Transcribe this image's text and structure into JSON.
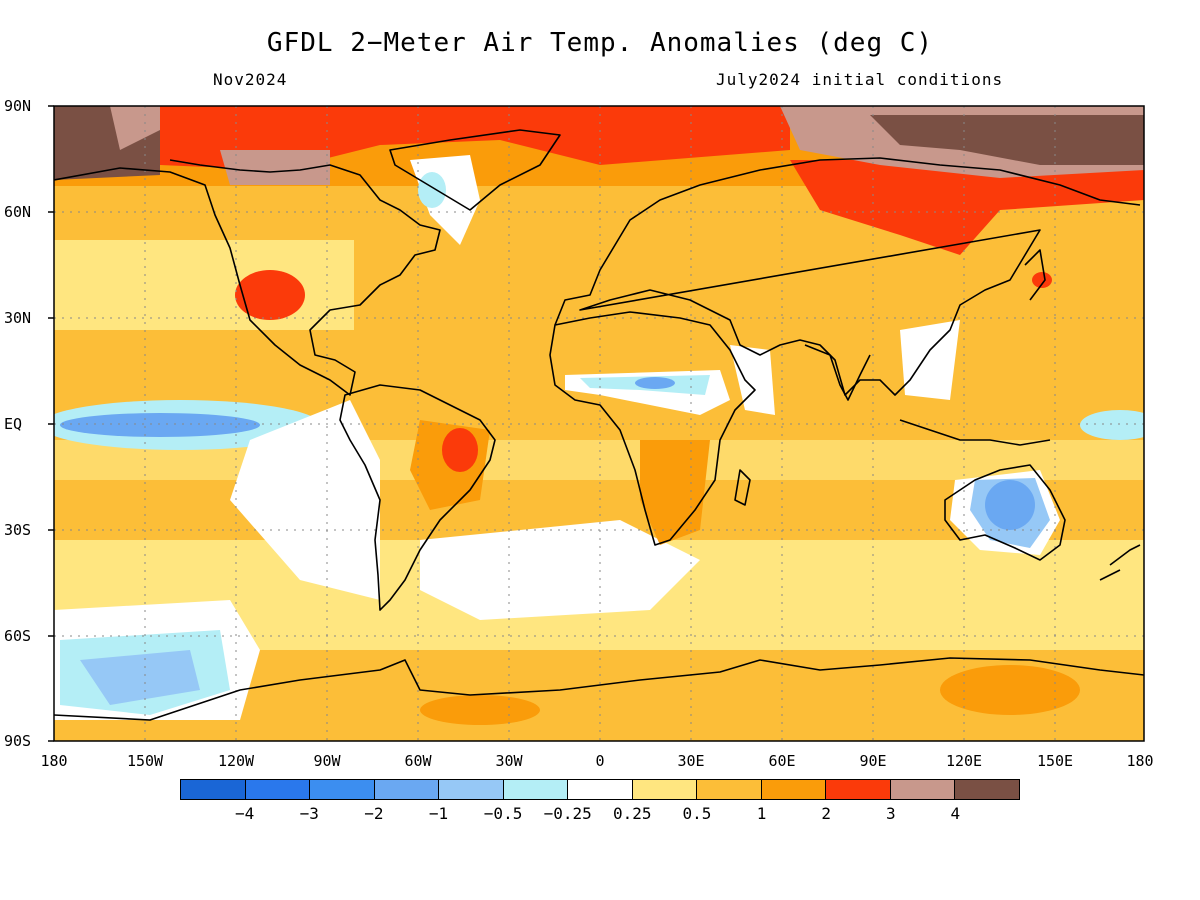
{
  "title": "GFDL 2−Meter Air Temp. Anomalies (deg C)",
  "subtitle_left": "Nov2024",
  "subtitle_right": "July2024 initial conditions",
  "lat_labels": [
    "90N",
    "60N",
    "30N",
    "EQ",
    "30S",
    "60S",
    "90S"
  ],
  "lon_labels": [
    "180",
    "150W",
    "120W",
    "90W",
    "60W",
    "30W",
    "0",
    "30E",
    "60E",
    "90E",
    "120E",
    "150E",
    "180"
  ],
  "colorbar": {
    "colors": [
      "#1a66d6",
      "#2a78ec",
      "#3c8ef0",
      "#6aa8f2",
      "#96c8f6",
      "#b4eef6",
      "#ffffff",
      "#ffe680",
      "#fcbe38",
      "#fa9c0a",
      "#fb3a0a",
      "#c8988c",
      "#7a5044"
    ],
    "labels": [
      "−4",
      "−3",
      "−2",
      "−1",
      "−0.5",
      "−0.25",
      "0.25",
      "0.5",
      "1",
      "2",
      "3",
      "4"
    ]
  },
  "map_colors": {
    "ocean_warm": "#ffe680",
    "warm": "#fcbe38",
    "hot": "#fa9c0a",
    "very_hot": "#fb3a0a",
    "extreme": "#c8988c",
    "extreme_max": "#7a5044",
    "neutral": "#ffffff",
    "cool": "#b4eef6",
    "cooler": "#96c8f6",
    "cold": "#6aa8f2"
  }
}
